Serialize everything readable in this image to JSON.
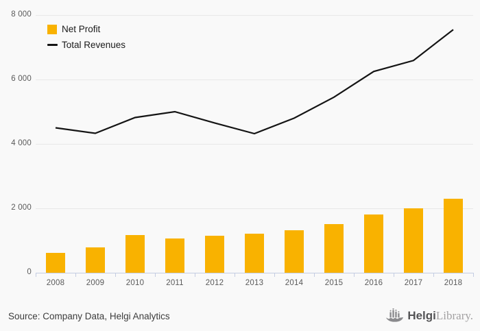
{
  "chart_data": {
    "type": "combo",
    "categories": [
      "2008",
      "2009",
      "2010",
      "2011",
      "2012",
      "2013",
      "2014",
      "2015",
      "2016",
      "2017",
      "2018"
    ],
    "series": [
      {
        "name": "Net Profit",
        "type": "bar",
        "color": "#F9B200",
        "values": [
          620,
          790,
          1160,
          1070,
          1150,
          1210,
          1310,
          1510,
          1800,
          2000,
          2300
        ]
      },
      {
        "name": "Total Revenues",
        "type": "line",
        "color": "#141414",
        "values": [
          4500,
          4330,
          4820,
          5000,
          4650,
          4320,
          4800,
          5450,
          6250,
          6590,
          7550
        ]
      }
    ],
    "title": "",
    "xlabel": "",
    "ylabel": "",
    "ylim": [
      0,
      8000
    ],
    "yticks": [
      0,
      2000,
      4000,
      6000,
      8000
    ],
    "ytick_labels": [
      "0",
      "2 000",
      "4 000",
      "6 000",
      "8 000"
    ],
    "grid": true,
    "legend_position": "top-left"
  },
  "footer": {
    "source": "Source: Company Data, Helgi Analytics",
    "logo": {
      "icon": "helgi-ship-icon",
      "brand_bold": "Helgi",
      "brand_light": "Library."
    }
  },
  "colors": {
    "bar": "#F9B200",
    "line": "#141414",
    "background": "#f9f9f9",
    "gridline": "#e8e8e8",
    "axis": "#c4cde2",
    "tick_text": "#595959"
  }
}
